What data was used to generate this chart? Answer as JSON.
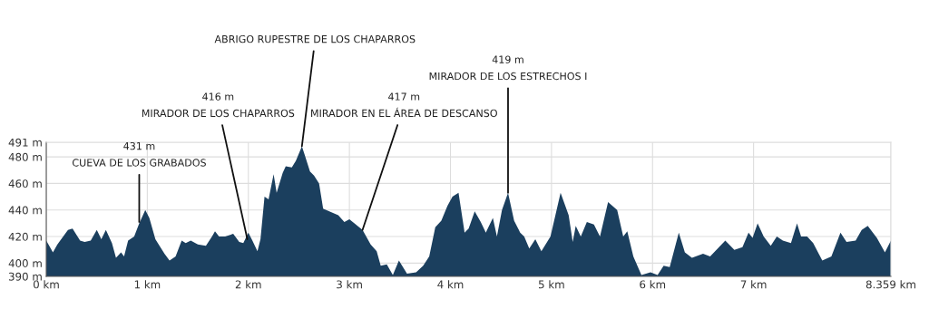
{
  "chart_data": {
    "type": "area",
    "color": "#1b3f5e",
    "grid": true,
    "x": [
      0,
      0.066,
      0.11,
      0.215,
      0.26,
      0.335,
      0.38,
      0.44,
      0.5,
      0.545,
      0.59,
      0.65,
      0.69,
      0.74,
      0.77,
      0.81,
      0.87,
      0.92,
      0.98,
      1.02,
      1.08,
      1.17,
      1.22,
      1.28,
      1.34,
      1.38,
      1.43,
      1.5,
      1.58,
      1.64,
      1.67,
      1.71,
      1.77,
      1.85,
      1.91,
      1.95,
      2.0,
      2.04,
      2.09,
      2.12,
      2.16,
      2.2,
      2.25,
      2.28,
      2.34,
      2.37,
      2.43,
      2.47,
      2.53,
      2.56,
      2.61,
      2.65,
      2.7,
      2.74,
      2.77,
      2.89,
      2.95,
      3.0,
      3.13,
      3.21,
      3.27,
      3.31,
      3.37,
      3.43,
      3.49,
      3.57,
      3.66,
      3.73,
      3.79,
      3.85,
      3.91,
      3.97,
      4.02,
      4.08,
      4.14,
      4.18,
      4.24,
      4.3,
      4.35,
      4.42,
      4.46,
      4.51,
      4.57,
      4.63,
      4.69,
      4.73,
      4.78,
      4.84,
      4.9,
      4.99,
      5.09,
      5.17,
      5.21,
      5.24,
      5.29,
      5.35,
      5.42,
      5.48,
      5.56,
      5.65,
      5.71,
      5.75,
      5.81,
      5.89,
      5.98,
      6.05,
      6.11,
      6.17,
      6.26,
      6.32,
      6.39,
      6.5,
      6.57,
      6.72,
      6.81,
      6.89,
      6.95,
      6.99,
      7.04,
      7.1,
      7.17,
      7.23,
      7.29,
      7.37,
      7.43,
      7.47,
      7.53,
      7.59,
      7.68,
      7.77,
      7.86,
      7.92,
      8.01,
      8.07,
      8.13,
      8.22,
      8.3,
      8.359
    ],
    "values": [
      417,
      408,
      414,
      425,
      426,
      417,
      416,
      417,
      425,
      418,
      425,
      415,
      404,
      408,
      405,
      417,
      420,
      430,
      440,
      434,
      418,
      407,
      402,
      405,
      417,
      415,
      417,
      414,
      413,
      420,
      424,
      420,
      420,
      422,
      416,
      415,
      423,
      417,
      409,
      418,
      450,
      448,
      467,
      453,
      468,
      473,
      472,
      477,
      488,
      481,
      469,
      466,
      460,
      441,
      440,
      436,
      431,
      433,
      425,
      414,
      409,
      398,
      399,
      391,
      402,
      392,
      393,
      398,
      405,
      427,
      432,
      443,
      450,
      453,
      423,
      426,
      439,
      431,
      423,
      434,
      420,
      440,
      453,
      432,
      423,
      420,
      411,
      418,
      409,
      420,
      453,
      436,
      416,
      428,
      420,
      431,
      429,
      420,
      446,
      440,
      420,
      424,
      405,
      391,
      393,
      391,
      398,
      397,
      423,
      408,
      404,
      407,
      405,
      417,
      410,
      412,
      423,
      419,
      430,
      420,
      413,
      420,
      417,
      415,
      430,
      420,
      420,
      415,
      402,
      405,
      423,
      416,
      417,
      425,
      428,
      419,
      408,
      417
    ],
    "xlim": [
      0,
      8.359
    ],
    "ylim": [
      390,
      491
    ],
    "xticks": [
      {
        "value": 0,
        "label": "0 km"
      },
      {
        "value": 1,
        "label": "1 km"
      },
      {
        "value": 2,
        "label": "2 km"
      },
      {
        "value": 3,
        "label": "3 km"
      },
      {
        "value": 4,
        "label": "4 km"
      },
      {
        "value": 5,
        "label": "5 km"
      },
      {
        "value": 6,
        "label": "6 km"
      },
      {
        "value": 7,
        "label": "7 km"
      },
      {
        "value": 8.359,
        "label": "8.359 km"
      }
    ],
    "yticks": [
      {
        "value": 390,
        "label": "390 m"
      },
      {
        "value": 400,
        "label": "400 m"
      },
      {
        "value": 420,
        "label": "420 m"
      },
      {
        "value": 440,
        "label": "440 m"
      },
      {
        "value": 460,
        "label": "460 m"
      },
      {
        "value": 480,
        "label": "480 m"
      },
      {
        "value": 491,
        "label": "491 m"
      }
    ],
    "annotations": [
      {
        "text": "431 m\nCUEVA DE LOS GRABADOS",
        "x": 0.92,
        "y": 431
      },
      {
        "text": "416 m\nMIRADOR DE LOS CHAPARROS",
        "x": 1.99,
        "y": 418
      },
      {
        "text": "ABRIGO RUPESTRE DE LOS CHAPARROS",
        "x": 2.53,
        "y": 488
      },
      {
        "text": "417 m\nMIRADOR EN EL ÁREA DE DESCANSO",
        "x": 3.13,
        "y": 425
      },
      {
        "text": "419 m\nMIRADOR DE LOS ESTRECHOS I",
        "x": 4.57,
        "y": 453
      }
    ]
  }
}
